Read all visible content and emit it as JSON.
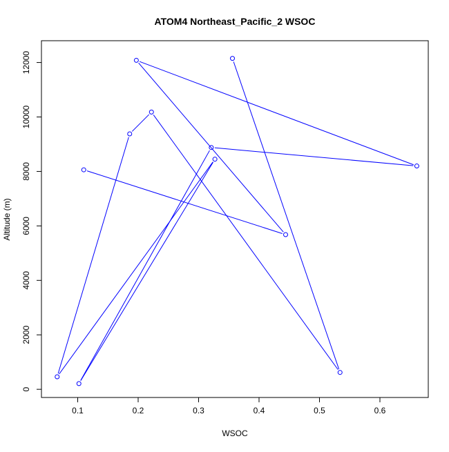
{
  "chart_data": {
    "type": "line",
    "title": "ATOM4 Northeast_Pacific_2 WSOC",
    "xlabel": "WSOC",
    "ylabel": "Altitude (m)",
    "xlim": [
      0.04,
      0.68
    ],
    "ylim": [
      -300,
      12800
    ],
    "x_ticks": [
      0.1,
      0.2,
      0.3,
      0.4,
      0.5,
      0.6
    ],
    "x_tick_labels": [
      "0.1",
      "0.2",
      "0.3",
      "0.4",
      "0.5",
      "0.6"
    ],
    "y_ticks": [
      0,
      2000,
      4000,
      6000,
      8000,
      10000,
      12000
    ],
    "y_tick_labels": [
      "0",
      "2000",
      "4000",
      "6000",
      "8000",
      "10000",
      "12000"
    ],
    "grid": false,
    "legend": "none",
    "series": [
      {
        "color": "#0000ff",
        "marker": "open-circle",
        "points": [
          {
            "x": 0.356,
            "y": 12150
          },
          {
            "x": 0.534,
            "y": 620
          },
          {
            "x": 0.222,
            "y": 10180
          },
          {
            "x": 0.186,
            "y": 9380
          },
          {
            "x": 0.066,
            "y": 460
          },
          {
            "x": 0.327,
            "y": 8450
          },
          {
            "x": 0.102,
            "y": 210
          },
          {
            "x": 0.321,
            "y": 8880
          },
          {
            "x": 0.661,
            "y": 8200
          },
          {
            "x": 0.197,
            "y": 12080
          },
          {
            "x": 0.444,
            "y": 5680
          },
          {
            "x": 0.11,
            "y": 8060
          }
        ]
      }
    ]
  }
}
